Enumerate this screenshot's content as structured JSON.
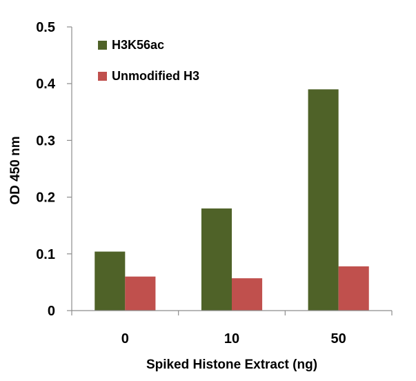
{
  "chart_data": {
    "type": "bar",
    "title": "",
    "xlabel": "Spiked Histone Extract (ng)",
    "ylabel": "OD 450 nm",
    "categories": [
      "0",
      "10",
      "50"
    ],
    "series": [
      {
        "name": "H3K56ac",
        "color": "#4f6228",
        "values": [
          0.104,
          0.18,
          0.39
        ]
      },
      {
        "name": "Unmodified H3",
        "color": "#c0504d",
        "values": [
          0.06,
          0.057,
          0.078
        ]
      }
    ],
    "ylim": [
      0,
      0.5
    ],
    "yticks": [
      "0",
      "0.1",
      "0.2",
      "0.3",
      "0.4",
      "0.5"
    ],
    "grid": false,
    "legend_position": "top-left"
  }
}
